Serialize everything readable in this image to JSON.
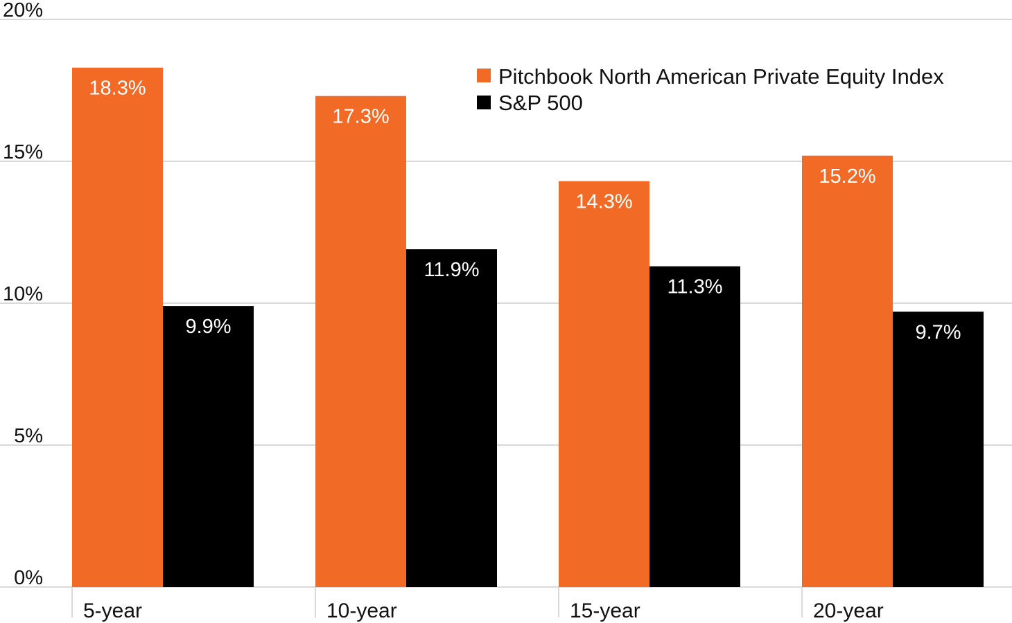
{
  "chart_data": {
    "type": "bar",
    "title": "",
    "xlabel": "",
    "ylabel": "",
    "categories": [
      "5-year",
      "10-year",
      "15-year",
      "20-year"
    ],
    "series": [
      {
        "name": "Pitchbook North American Private Equity Index",
        "color": "#F26B26",
        "values": [
          18.3,
          17.3,
          14.3,
          15.2
        ],
        "labels": [
          "18.3%",
          "17.3%",
          "14.3%",
          "15.2%"
        ]
      },
      {
        "name": "S&P 500",
        "color": "#000000",
        "values": [
          9.9,
          11.9,
          11.3,
          9.7
        ],
        "labels": [
          "9.9%",
          "11.9%",
          "11.3%",
          "9.7%"
        ]
      }
    ],
    "ylim": [
      0,
      20
    ],
    "yticks": [
      0,
      5,
      10,
      15,
      20
    ],
    "ytick_labels": [
      "0%",
      "5%",
      "10%",
      "15%",
      "20%"
    ],
    "grid": true,
    "legend_position": "top-right",
    "gridline_color": "#D9D9D9"
  }
}
